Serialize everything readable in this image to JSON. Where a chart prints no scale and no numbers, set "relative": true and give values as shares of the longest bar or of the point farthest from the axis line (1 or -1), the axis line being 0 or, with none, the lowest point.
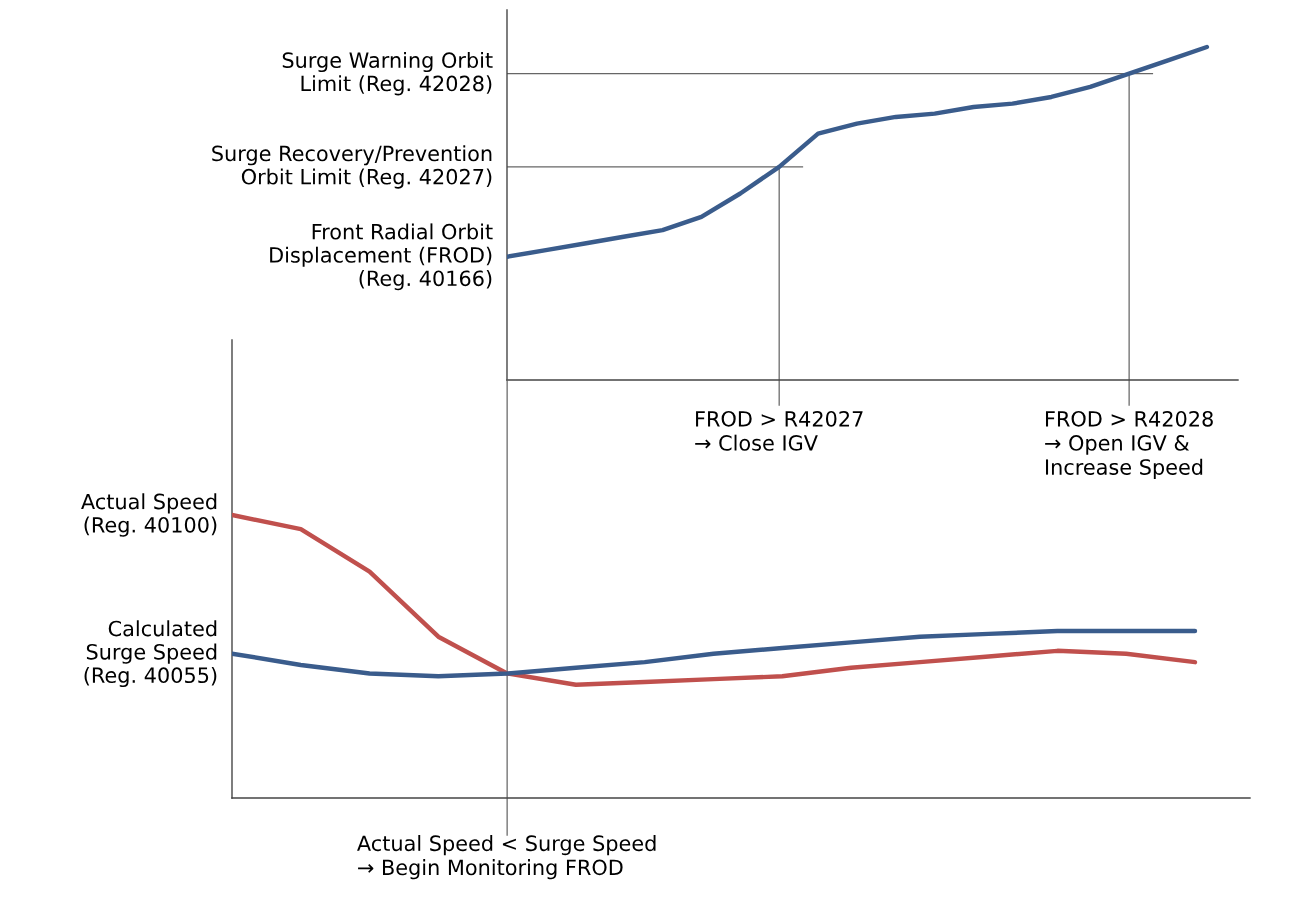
{
  "chart_data": [
    {
      "type": "line",
      "relative": true,
      "categories": [
        null,
        null,
        null,
        null,
        null,
        null,
        null,
        null,
        null,
        null,
        null,
        null,
        null,
        null,
        null,
        null,
        null,
        null,
        null
      ],
      "series": [
        {
          "name": "Front Radial Orbit\nDisplacement (FROD)\n(Reg. 40166)",
          "color": "#3a5c8c",
          "values": [
            0.37,
            0.39,
            0.41,
            0.43,
            0.45,
            0.49,
            0.56,
            0.64,
            0.74,
            0.77,
            0.79,
            0.8,
            0.82,
            0.83,
            0.85,
            0.88,
            0.92,
            0.96,
            1.0
          ]
        }
      ],
      "ref_lines": [
        {
          "axis": "y",
          "value": 0.92,
          "label": "Surge Warning Orbit\nLimit (Reg. 42028)",
          "color": "#666666"
        },
        {
          "axis": "y",
          "value": 0.64,
          "label": "Surge Recovery/Prevention\nOrbit Limit (Reg. 42027)",
          "color": "#666666"
        }
      ],
      "annotations": [
        "FROD > R42027\n→ Close IGV",
        "FROD > R42028\n→ Open IGV &\nIncrease Speed"
      ]
    },
    {
      "type": "line",
      "relative": true,
      "categories": [
        null,
        null,
        null,
        null,
        null,
        null,
        null,
        null,
        null,
        null,
        null,
        null,
        null,
        null,
        null
      ],
      "series": [
        {
          "name": "Actual Speed\n(Reg. 40100)",
          "color": "#c0504d",
          "values": [
            1.0,
            0.95,
            0.8,
            0.57,
            0.44,
            0.4,
            0.41,
            0.42,
            0.43,
            0.46,
            0.48,
            0.5,
            0.52,
            0.51,
            0.48
          ]
        },
        {
          "name": "Calculated\nSurge Speed\n(Reg. 40055)",
          "color": "#3a5c8c",
          "values": [
            0.51,
            0.47,
            0.44,
            0.43,
            0.44,
            0.46,
            0.48,
            0.51,
            0.53,
            0.55,
            0.57,
            0.58,
            0.59,
            0.59,
            0.59
          ]
        }
      ],
      "annotations": [
        "Actual Speed < Surge Speed\n→ Begin Monitoring FROD"
      ]
    }
  ]
}
